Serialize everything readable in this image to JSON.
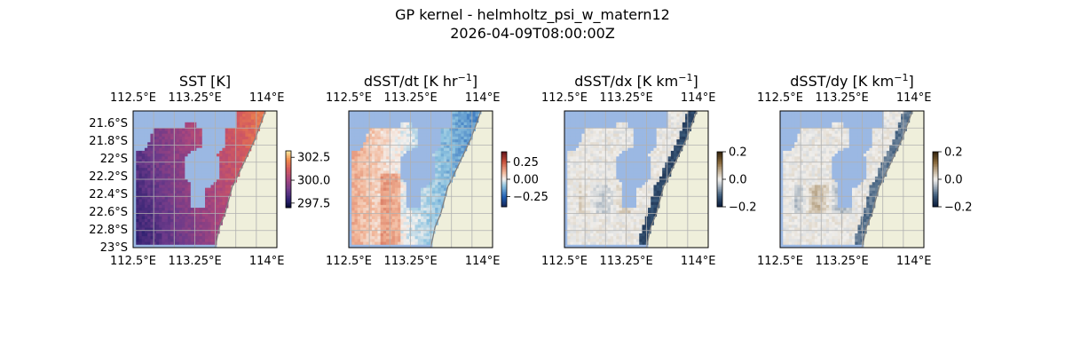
{
  "figure": {
    "suptitle_line1": "GP kernel - helmholtz_psi_w_matern12",
    "suptitle_line2": "2026-04-09T08:00:00Z"
  },
  "colors": {
    "land": "#efefdb",
    "missing": "#9bb8e3",
    "grid": "#b0b0b0",
    "coast": "#808080"
  },
  "chart_data": [
    {
      "type": "heatmap",
      "title": "SST [K]",
      "title_sup": "",
      "cmap": "thermal",
      "xticks": [
        "112.5°E",
        "113.25°E",
        "114°E"
      ],
      "yticks": [
        "21.6°S",
        "21.8°S",
        "22°S",
        "22.2°S",
        "22.4°S",
        "22.6°S",
        "22.8°S",
        "23°S"
      ],
      "colorbar": {
        "min": 297.0,
        "max": 303.2,
        "ticks": [
          297.5,
          300.0,
          302.5
        ],
        "tick_labels": [
          "297.5",
          "300.0",
          "302.5"
        ]
      },
      "value_range": [
        297.0,
        303.2
      ]
    },
    {
      "type": "heatmap",
      "title": "dSST/dt [K hr",
      "title_sup": "−1",
      "title_end": "]",
      "cmap": "balance",
      "xticks": [
        "112.5°E",
        "113.25°E",
        "114°E"
      ],
      "yticks": [],
      "colorbar": {
        "min": -0.4,
        "max": 0.4,
        "ticks": [
          0.25,
          0.0,
          -0.25
        ],
        "tick_labels": [
          "0.25",
          "0.00",
          "−0.25"
        ]
      },
      "value_range": [
        -0.4,
        0.4
      ]
    },
    {
      "type": "heatmap",
      "title": "dSST/dx [K km",
      "title_sup": "−1",
      "title_end": "]",
      "cmap": "diff",
      "xticks": [
        "112.5°E",
        "113.25°E",
        "114°E"
      ],
      "yticks": [],
      "colorbar": {
        "min": -0.2,
        "max": 0.2,
        "ticks": [
          0.2,
          0.0,
          -0.2
        ],
        "tick_labels": [
          "0.2",
          "0.0",
          "−0.2"
        ]
      },
      "value_range": [
        -0.2,
        0.2
      ]
    },
    {
      "type": "heatmap",
      "title": "dSST/dy [K km",
      "title_sup": "−1",
      "title_end": "]",
      "cmap": "diff",
      "xticks": [
        "112.5°E",
        "113.25°E",
        "114°E"
      ],
      "yticks": [],
      "colorbar": {
        "min": -0.2,
        "max": 0.2,
        "ticks": [
          0.2,
          0.0,
          -0.2
        ],
        "tick_labels": [
          "0.2",
          "0.0",
          "−0.2"
        ]
      },
      "value_range": [
        -0.2,
        0.2
      ]
    }
  ]
}
